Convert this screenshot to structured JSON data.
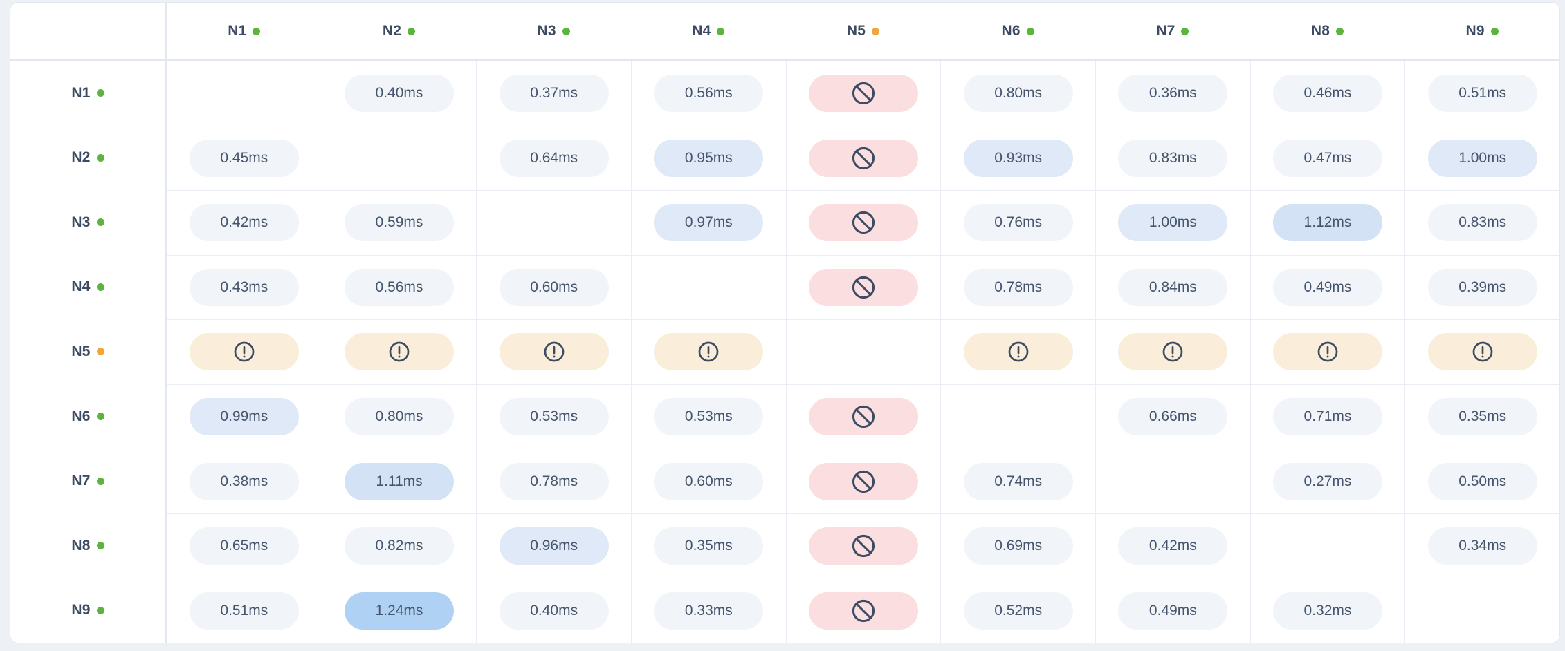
{
  "unit": "ms",
  "nodes": [
    {
      "id": "N1",
      "status": "online"
    },
    {
      "id": "N2",
      "status": "online"
    },
    {
      "id": "N3",
      "status": "online"
    },
    {
      "id": "N4",
      "status": "online"
    },
    {
      "id": "N5",
      "status": "warning"
    },
    {
      "id": "N6",
      "status": "online"
    },
    {
      "id": "N7",
      "status": "online"
    },
    {
      "id": "N8",
      "status": "online"
    },
    {
      "id": "N9",
      "status": "online"
    }
  ],
  "status_colors": {
    "online": "#5ab43e",
    "warning": "#f0a63a"
  },
  "latency_scale": {
    "normal_bg": "#f1f5f9",
    "elevated_bg": "#dfe9f7",
    "high_bg": "#d3e2f5",
    "critical_bg": "#aed1f4",
    "elevated_from": 0.9,
    "high_from": 1.05,
    "critical_from": 1.2
  },
  "cell_colors": {
    "blocked_bg": "#fadee0",
    "warning_bg": "#faeedb",
    "icon_stroke": "#3d4c62"
  },
  "chart_data": {
    "type": "heatmap",
    "title": "",
    "unit": "ms",
    "rows": [
      "N1",
      "N2",
      "N3",
      "N4",
      "N5",
      "N6",
      "N7",
      "N8",
      "N9"
    ],
    "columns": [
      "N1",
      "N2",
      "N3",
      "N4",
      "N5",
      "N6",
      "N7",
      "N8",
      "N9"
    ],
    "values": [
      [
        null,
        0.4,
        0.37,
        0.56,
        null,
        0.8,
        0.36,
        0.46,
        0.51
      ],
      [
        0.45,
        null,
        0.64,
        0.95,
        null,
        0.93,
        0.83,
        0.47,
        1.0
      ],
      [
        0.42,
        0.59,
        null,
        0.97,
        null,
        0.76,
        1.0,
        1.12,
        0.83
      ],
      [
        0.43,
        0.56,
        0.6,
        null,
        null,
        0.78,
        0.84,
        0.49,
        0.39
      ],
      [
        null,
        null,
        null,
        null,
        null,
        null,
        null,
        null,
        null
      ],
      [
        0.99,
        0.8,
        0.53,
        0.53,
        null,
        null,
        0.66,
        0.71,
        0.35
      ],
      [
        0.38,
        1.11,
        0.78,
        0.6,
        null,
        0.74,
        null,
        0.27,
        0.5
      ],
      [
        0.65,
        0.82,
        0.96,
        0.35,
        null,
        0.69,
        0.42,
        null,
        0.34
      ],
      [
        0.51,
        1.24,
        0.4,
        0.33,
        null,
        0.52,
        0.49,
        0.32,
        null
      ]
    ],
    "states": [
      [
        "self",
        "ok",
        "ok",
        "ok",
        "blocked",
        "ok",
        "ok",
        "ok",
        "ok"
      ],
      [
        "ok",
        "self",
        "ok",
        "ok",
        "blocked",
        "ok",
        "ok",
        "ok",
        "ok"
      ],
      [
        "ok",
        "ok",
        "self",
        "ok",
        "blocked",
        "ok",
        "ok",
        "ok",
        "ok"
      ],
      [
        "ok",
        "ok",
        "ok",
        "self",
        "blocked",
        "ok",
        "ok",
        "ok",
        "ok"
      ],
      [
        "warning",
        "warning",
        "warning",
        "warning",
        "self",
        "warning",
        "warning",
        "warning",
        "warning"
      ],
      [
        "ok",
        "ok",
        "ok",
        "ok",
        "blocked",
        "self",
        "ok",
        "ok",
        "ok"
      ],
      [
        "ok",
        "ok",
        "ok",
        "ok",
        "blocked",
        "ok",
        "self",
        "ok",
        "ok"
      ],
      [
        "ok",
        "ok",
        "ok",
        "ok",
        "blocked",
        "ok",
        "ok",
        "self",
        "ok"
      ],
      [
        "ok",
        "ok",
        "ok",
        "ok",
        "blocked",
        "ok",
        "ok",
        "ok",
        "self"
      ]
    ]
  }
}
